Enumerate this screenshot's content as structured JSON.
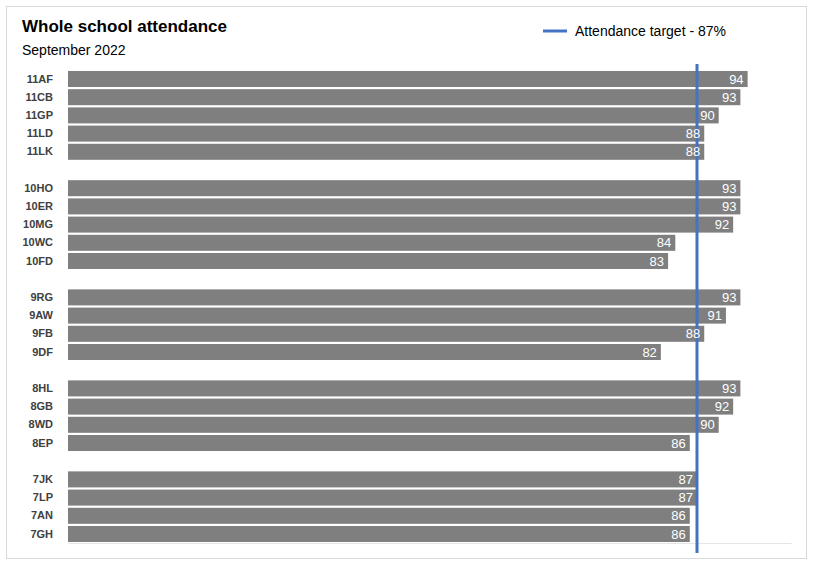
{
  "chart_data": {
    "type": "bar",
    "orientation": "horizontal",
    "title": "Whole school attendance",
    "subtitle": "September 2022",
    "categories": [
      "11AF",
      "11CB",
      "11GP",
      "11LD",
      "11LK",
      null,
      "10HO",
      "10ER",
      "10MG",
      "10WC",
      "10FD",
      null,
      "9RG",
      "9AW",
      "9FB",
      "9DF",
      null,
      "8HL",
      "8GB",
      "8WD",
      "8EP",
      null,
      "7JK",
      "7LP",
      "7AN",
      "7GH"
    ],
    "values": [
      94,
      93,
      90,
      88,
      88,
      null,
      93,
      93,
      92,
      84,
      83,
      null,
      93,
      91,
      88,
      82,
      null,
      93,
      92,
      90,
      86,
      null,
      87,
      87,
      86,
      86
    ],
    "color": "#7f7f7f",
    "data_labels": true,
    "xlim": [
      0,
      100
    ],
    "xticks": [],
    "tick_labels": false,
    "grid": false,
    "target": {
      "label": "Attendance target - 87%",
      "value": 87,
      "color": "#4472c4"
    }
  }
}
